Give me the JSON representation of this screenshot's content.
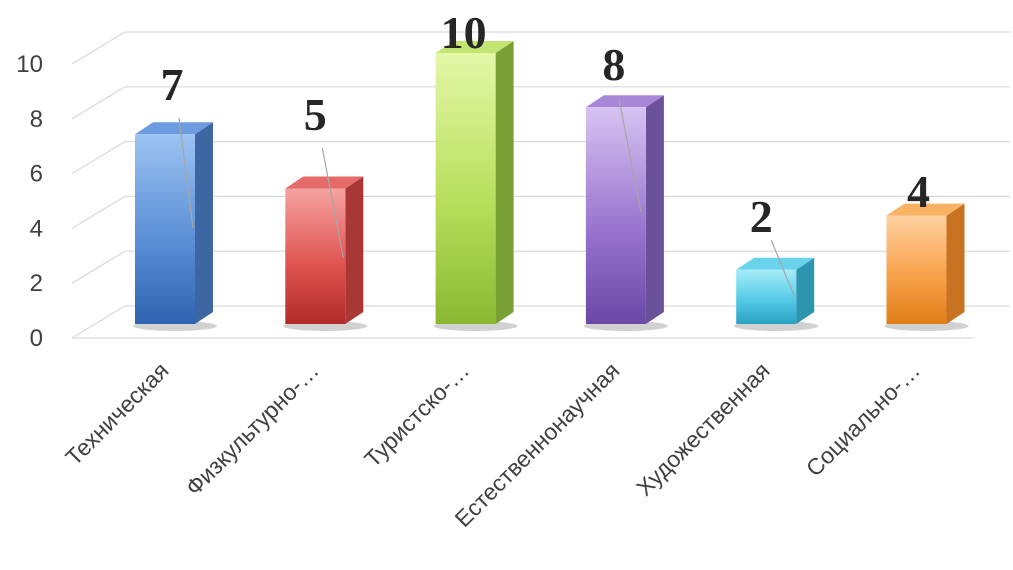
{
  "chart_data": {
    "type": "bar",
    "categories": [
      "Техническая",
      "Физкультурно-…",
      "Туристско-…",
      "Естественнонаучная",
      "Художественная",
      "Социально-…"
    ],
    "values": [
      7,
      5,
      10,
      8,
      2,
      4
    ],
    "data_labels": [
      "7",
      "5",
      "10",
      "8",
      "2",
      "4"
    ],
    "yticks": [
      "0",
      "2",
      "4",
      "6",
      "8",
      "10"
    ],
    "ylim": [
      0,
      10
    ],
    "grid": true,
    "legend": "none",
    "style": "3d-columns",
    "colors": [
      {
        "light": "#9dc3f2",
        "main": "#5b8fd6",
        "dark": "#2e64b0",
        "side": "#3c67a3",
        "top": "#6d9be0"
      },
      {
        "light": "#f5a3a1",
        "main": "#e05552",
        "dark": "#b02a27",
        "side": "#a83735",
        "top": "#e56b69"
      },
      {
        "light": "#e4f7a8",
        "main": "#b7df5c",
        "dark": "#8ab833",
        "side": "#79a035",
        "top": "#c1e472"
      },
      {
        "light": "#d7c3f2",
        "main": "#9a76cf",
        "dark": "#6a48a6",
        "side": "#6b519a",
        "top": "#a887d8"
      },
      {
        "light": "#a6ecf9",
        "main": "#55cbe6",
        "dark": "#2aa2c2",
        "side": "#2e95b0",
        "top": "#69d3eb"
      },
      {
        "light": "#ffd0a0",
        "main": "#f7a24b",
        "dark": "#e07e18",
        "side": "#c77322",
        "top": "#f9b163"
      }
    ]
  }
}
